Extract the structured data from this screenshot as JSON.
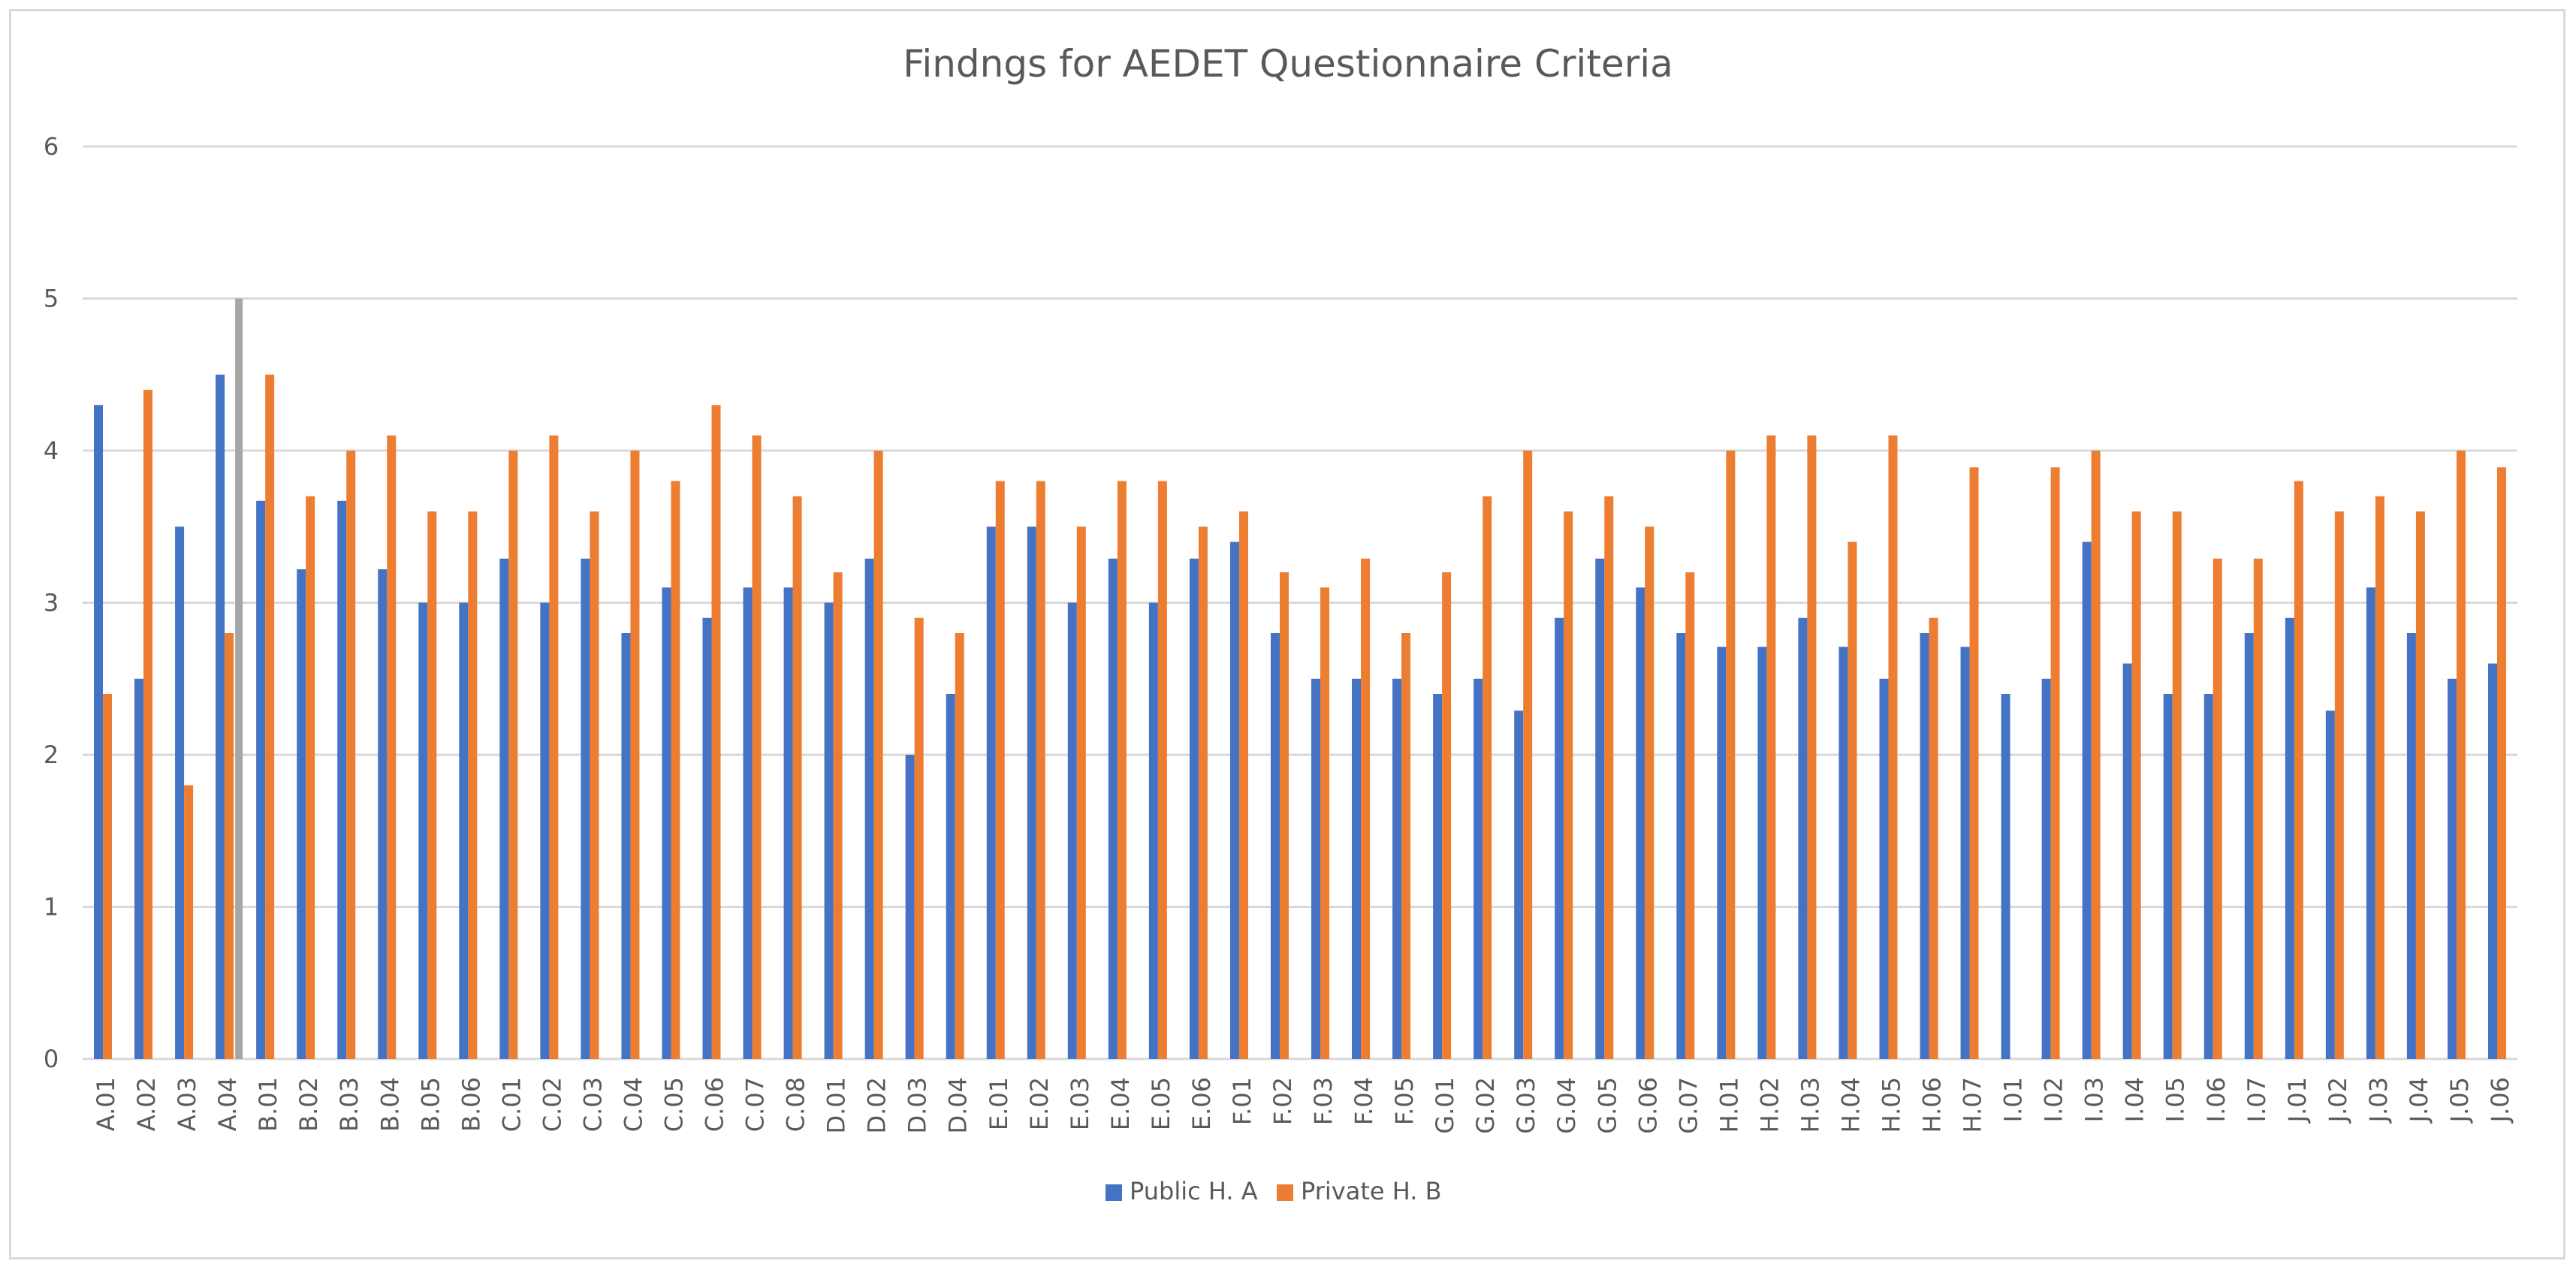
{
  "chart_data": {
    "type": "bar",
    "title": "Findngs for AEDET Questionnaire Criteria",
    "xlabel": "",
    "ylabel": "",
    "ylim": [
      0,
      6
    ],
    "yticks": [
      0,
      1,
      2,
      3,
      4,
      5,
      6
    ],
    "grid": true,
    "legend_placement": "bottom",
    "categories": [
      "A.01",
      "A.02",
      "A.03",
      "A.04",
      "B.01",
      "B.02",
      "B.03",
      "B.04",
      "B.05",
      "B.06",
      "C.01",
      "C.02",
      "C.03",
      "C.04",
      "C.05",
      "C.06",
      "C.07",
      "C.08",
      "D.01",
      "D.02",
      "D.03",
      "D.04",
      "E.01",
      "E.02",
      "E.03",
      "E.04",
      "E.05",
      "E.06",
      "F.01",
      "F.02",
      "F.03",
      "F.04",
      "F.05",
      "G.01",
      "G.02",
      "G.03",
      "G.04",
      "G.05",
      "G.06",
      "G.07",
      "H.01",
      "H.02",
      "H.03",
      "H.04",
      "H.05",
      "H.06",
      "H.07",
      "I.01",
      "I.02",
      "I.03",
      "I.04",
      "I.05",
      "I.06",
      "I.07",
      "J.01",
      "J.02",
      "J.03",
      "J.04",
      "J.05",
      "J.06"
    ],
    "series": [
      {
        "name": "Public H. A",
        "color": "#4472c4",
        "values": [
          4.3,
          2.5,
          3.5,
          4.5,
          3.67,
          3.22,
          3.67,
          3.22,
          3.0,
          3.0,
          3.29,
          3.0,
          3.29,
          2.8,
          3.1,
          2.9,
          3.1,
          3.1,
          3.0,
          3.29,
          2.0,
          2.4,
          3.5,
          3.5,
          3.0,
          3.29,
          3.0,
          3.29,
          3.4,
          2.8,
          2.5,
          2.5,
          2.5,
          2.4,
          2.5,
          2.29,
          2.9,
          3.29,
          3.1,
          2.8,
          2.71,
          2.71,
          2.9,
          2.71,
          2.5,
          2.8,
          2.71,
          2.4,
          2.5,
          3.4,
          2.6,
          2.4,
          2.4,
          2.8,
          2.9,
          2.29,
          3.1,
          2.8,
          2.5,
          2.6
        ]
      },
      {
        "name": "Private H. B",
        "color": "#ed7d31",
        "values": [
          2.4,
          4.4,
          1.8,
          2.8,
          4.5,
          3.7,
          4.0,
          4.1,
          3.6,
          3.6,
          4.0,
          4.1,
          3.6,
          4.0,
          3.8,
          4.3,
          4.1,
          3.7,
          3.2,
          4.0,
          2.9,
          2.8,
          3.8,
          3.8,
          3.5,
          3.8,
          3.8,
          3.5,
          3.6,
          3.2,
          3.1,
          3.29,
          2.8,
          3.2,
          3.7,
          4.0,
          3.6,
          3.7,
          3.5,
          3.2,
          4.0,
          4.1,
          4.1,
          3.4,
          4.1,
          2.9,
          3.89,
          null,
          3.89,
          4.0,
          3.6,
          3.6,
          3.29,
          3.29,
          3.8,
          3.6,
          3.7,
          3.6,
          4.0,
          3.89
        ]
      }
    ],
    "reference_line": {
      "category": "A.04",
      "value": 5,
      "color": "#a6a6a6"
    }
  }
}
